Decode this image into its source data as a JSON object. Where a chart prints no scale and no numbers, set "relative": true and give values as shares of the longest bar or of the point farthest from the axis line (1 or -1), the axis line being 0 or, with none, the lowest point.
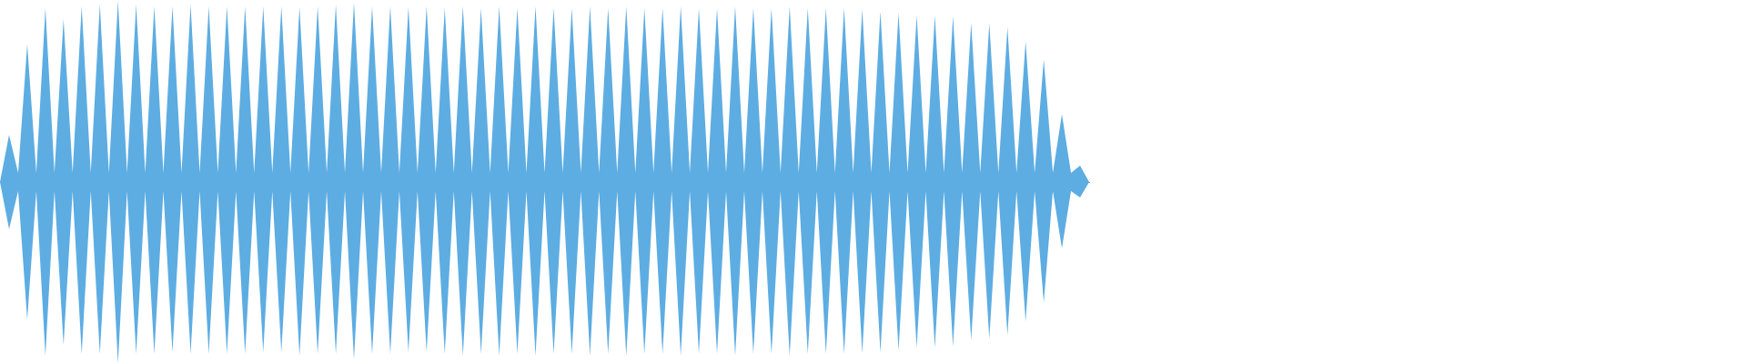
{
  "chart_data": {
    "type": "area",
    "relative": true,
    "categories": [
      null,
      null,
      null,
      null,
      null,
      null,
      null,
      null,
      null,
      null,
      null,
      null,
      null,
      null,
      null,
      null,
      null,
      null,
      null,
      null,
      null,
      null,
      null,
      null,
      null,
      null,
      null,
      null,
      null,
      null,
      null,
      null,
      null,
      null,
      null,
      null,
      null,
      null,
      null,
      null,
      null,
      null,
      null,
      null,
      null,
      null,
      null,
      null,
      null,
      null,
      null,
      null,
      null,
      null,
      null,
      null,
      null,
      null,
      null,
      null,
      null,
      null,
      null,
      null,
      null,
      null,
      null,
      null,
      null,
      null,
      null,
      null,
      null,
      null,
      null,
      null,
      null,
      null,
      null,
      null,
      null,
      null,
      null,
      null,
      null,
      null,
      null,
      null,
      null,
      null,
      null,
      null,
      null,
      null,
      null,
      null,
      null,
      null,
      null,
      null,
      null,
      null,
      null,
      null,
      null,
      null,
      null,
      null,
      null,
      null,
      null,
      null,
      null,
      null,
      null,
      null,
      null,
      null,
      null,
      null,
      null
    ],
    "series": [
      {
        "color": "#5dade2",
        "values": [
          0,
          0.26,
          0.05,
          0.76,
          0.05,
          0.96,
          0.05,
          0.9,
          0.05,
          0.97,
          0.05,
          0.98,
          0.05,
          1,
          0.05,
          0.98,
          0.05,
          0.97,
          0.05,
          0.97,
          0.05,
          0.98,
          0.05,
          0.97,
          0.05,
          0.97,
          0.05,
          0.97,
          0.05,
          0.97,
          0.05,
          0.97,
          0.05,
          0.966,
          0.05,
          0.97,
          0.05,
          0.98,
          0.05,
          0.99,
          0.05,
          0.97,
          0.05,
          0.97,
          0.05,
          0.966,
          0.05,
          0.97,
          0.05,
          0.96,
          0.05,
          0.97,
          0.05,
          0.96,
          0.05,
          0.97,
          0.05,
          0.96,
          0.05,
          0.97,
          0.05,
          0.96,
          0.05,
          0.96,
          0.05,
          0.97,
          0.05,
          0.96,
          0.05,
          0.97,
          0.05,
          0.96,
          0.05,
          0.96,
          0.05,
          0.97,
          0.05,
          0.96,
          0.05,
          0.96,
          0.05,
          0.97,
          0.05,
          0.96,
          0.05,
          0.96,
          0.05,
          0.97,
          0.05,
          0.96,
          0.05,
          0.96,
          0.05,
          0.96,
          0.05,
          0.954,
          0.05,
          0.942,
          0.05,
          0.934,
          0.05,
          0.92,
          0.05,
          0.92,
          0.05,
          0.914,
          0.05,
          0.88,
          0.05,
          0.876,
          0.05,
          0.854,
          0.05,
          0.776,
          0.05,
          0.676,
          0.05,
          0.374,
          0.05,
          0.09,
          0
        ]
      },
      {
        "color": "#5dade2",
        "values": [
          0,
          -0.26,
          -0.05,
          -0.76,
          -0.05,
          -0.96,
          -0.05,
          -0.9,
          -0.05,
          -0.95,
          -0.05,
          -0.95,
          -0.05,
          -1,
          -0.05,
          -0.95,
          -0.05,
          -0.95,
          -0.05,
          -0.94,
          -0.05,
          -0.95,
          -0.05,
          -0.95,
          -0.05,
          -0.95,
          -0.05,
          -0.95,
          -0.05,
          -0.94,
          -0.05,
          -0.94,
          -0.05,
          -0.96,
          -0.05,
          -0.95,
          -0.05,
          -0.95,
          -0.05,
          -0.98,
          -0.05,
          -0.95,
          -0.05,
          -0.95,
          -0.05,
          -0.94,
          -0.05,
          -0.94,
          -0.05,
          -0.95,
          -0.05,
          -0.96,
          -0.05,
          -0.95,
          -0.05,
          -0.96,
          -0.05,
          -0.95,
          -0.05,
          -0.96,
          -0.05,
          -0.95,
          -0.05,
          -0.95,
          -0.05,
          -0.96,
          -0.05,
          -0.95,
          -0.05,
          -0.96,
          -0.05,
          -0.95,
          -0.05,
          -0.95,
          -0.05,
          -0.96,
          -0.05,
          -0.95,
          -0.05,
          -0.95,
          -0.05,
          -0.96,
          -0.05,
          -0.95,
          -0.05,
          -0.95,
          -0.05,
          -0.96,
          -0.05,
          -0.95,
          -0.05,
          -0.95,
          -0.05,
          -0.95,
          -0.05,
          -0.946,
          -0.05,
          -0.942,
          -0.05,
          -0.93,
          -0.05,
          -0.916,
          -0.05,
          -0.916,
          -0.05,
          -0.908,
          -0.05,
          -0.874,
          -0.05,
          -0.866,
          -0.05,
          -0.846,
          -0.05,
          -0.77,
          -0.05,
          -0.666,
          -0.05,
          -0.366,
          -0.05,
          -0.086,
          0
        ]
      }
    ]
  }
}
